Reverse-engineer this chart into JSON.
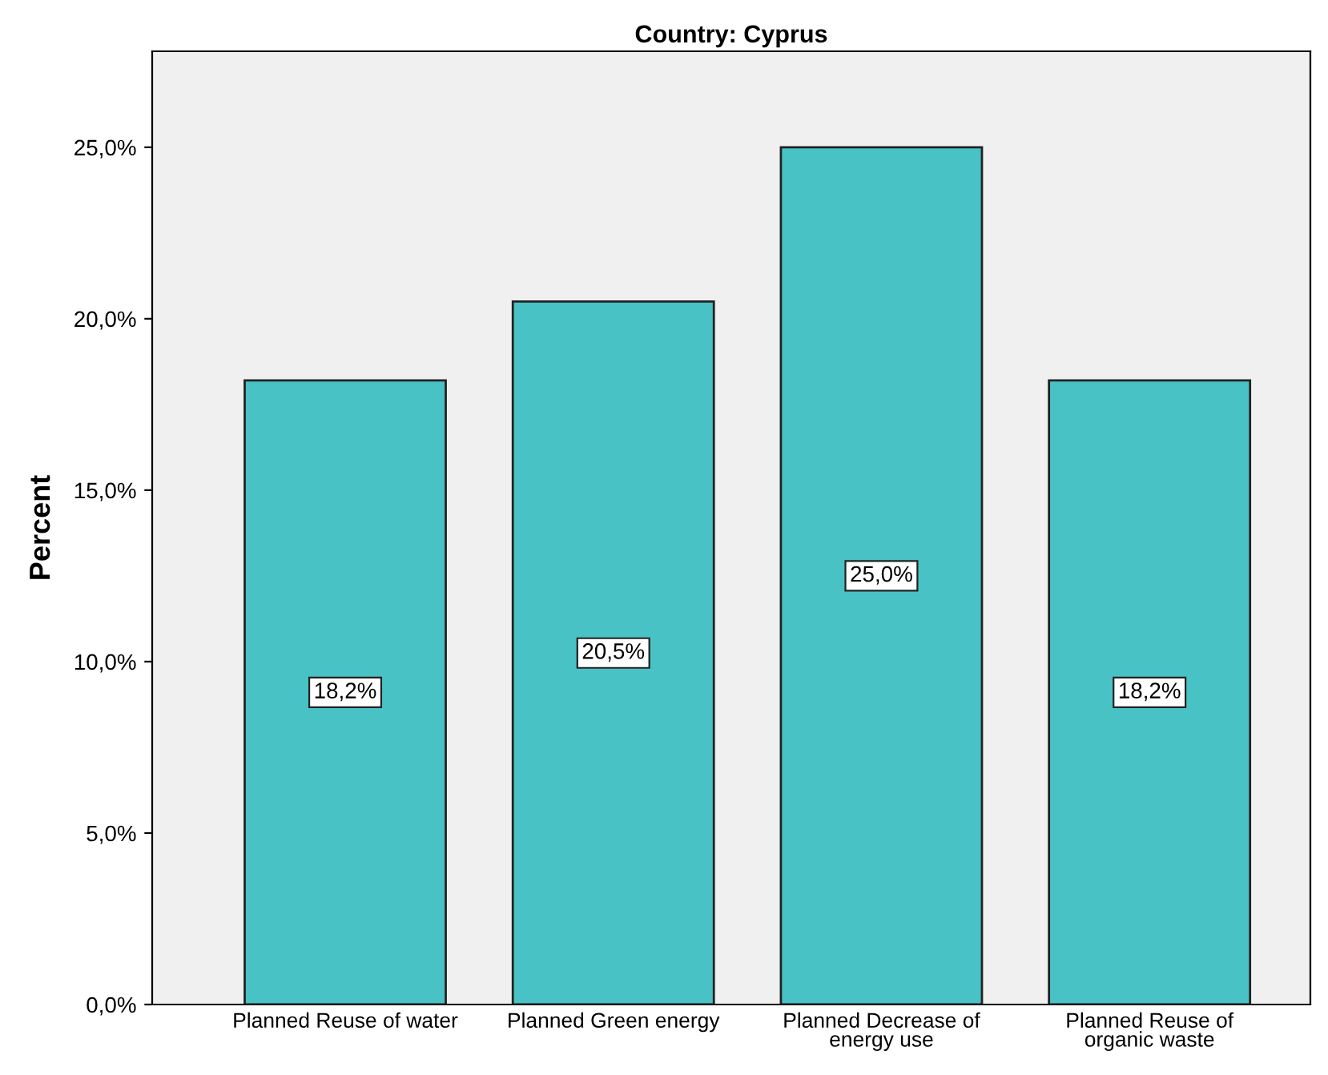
{
  "chart_data": {
    "type": "bar",
    "title": "Country: Cyprus",
    "ylabel": "Percent",
    "categories": [
      "Planned Reuse of water",
      "Planned Green energy",
      "Planned Decrease of\nenergy use",
      "Planned Reuse of\norganic waste"
    ],
    "values": [
      18.2,
      20.5,
      25.0,
      18.2
    ],
    "value_labels": [
      "18,2%",
      "20,5%",
      "25,0%",
      "18,2%"
    ],
    "color": "#48c2c5",
    "ylim": [
      0,
      27.8
    ],
    "yticks": [
      {
        "value": 0,
        "label": "0,0%"
      },
      {
        "value": 5,
        "label": "5,0%"
      },
      {
        "value": 10,
        "label": "10,0%"
      },
      {
        "value": 15,
        "label": "15,0%"
      },
      {
        "value": 20,
        "label": "20,0%"
      },
      {
        "value": 25,
        "label": "25,0%"
      }
    ],
    "grid": false
  }
}
